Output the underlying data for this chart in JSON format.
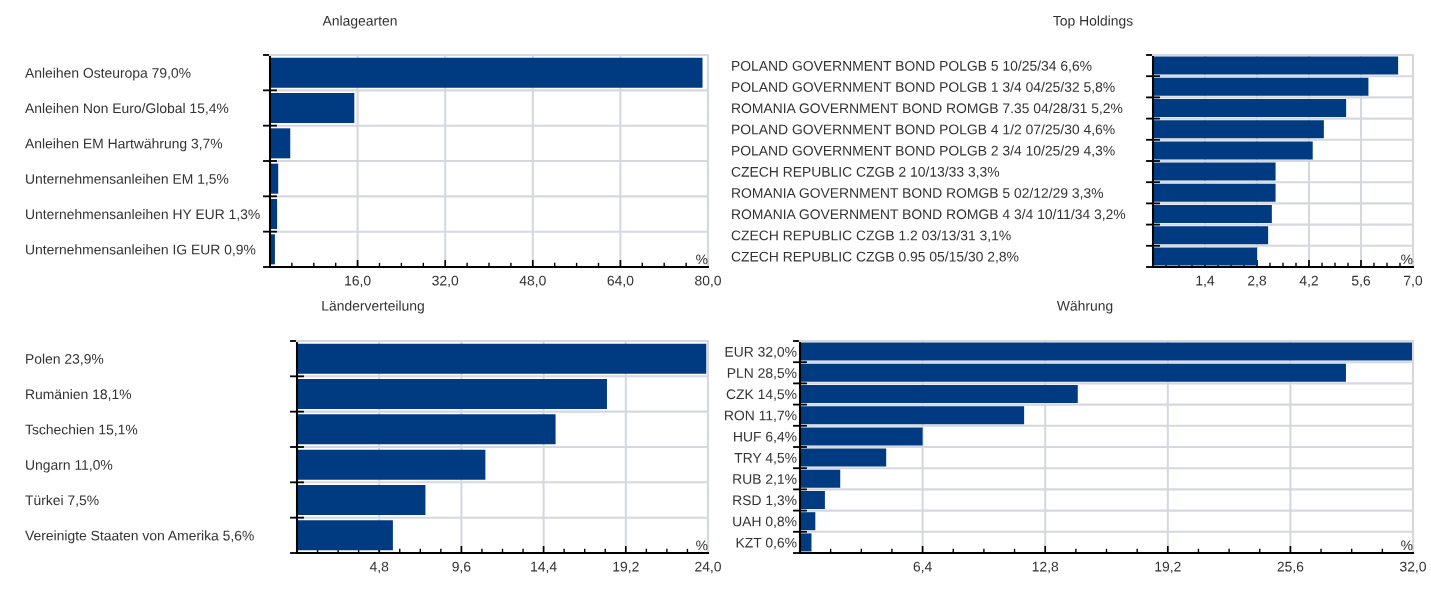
{
  "chart_data": [
    {
      "type": "bar",
      "orientation": "horizontal",
      "title": "Anlagearten",
      "categories": [
        "Anleihen Osteuropa 79,0%",
        "Anleihen Non Euro/Global 15,4%",
        "Anleihen EM Hartwährung 3,7%",
        "Unternehmensanleihen EM 1,5%",
        "Unternehmensanleihen HY EUR 1,3%",
        "Unternehmensanleihen IG EUR 0,9%"
      ],
      "values": [
        79.0,
        15.4,
        3.7,
        1.5,
        1.3,
        0.9
      ],
      "color": "#003a80",
      "xlim": [
        0,
        80
      ],
      "xticks": [
        {
          "value": 16,
          "label": "16,0"
        },
        {
          "value": 32,
          "label": "32,0"
        },
        {
          "value": 48,
          "label": "48,0"
        },
        {
          "value": 64,
          "label": "64,0"
        },
        {
          "value": 80,
          "label": "80,0"
        }
      ],
      "grid": true,
      "annotations": [
        "%"
      ]
    },
    {
      "type": "bar",
      "orientation": "horizontal",
      "title": "Top Holdings",
      "categories": [
        "POLAND GOVERNMENT BOND POLGB 5 10/25/34 6,6%",
        "POLAND GOVERNMENT BOND POLGB 1 3/4 04/25/32 5,8%",
        "ROMANIA GOVERNMENT BOND ROMGB 7.35 04/28/31 5,2%",
        "POLAND GOVERNMENT BOND POLGB 4 1/2 07/25/30 4,6%",
        "POLAND GOVERNMENT BOND POLGB 2 3/4 10/25/29 4,3%",
        "CZECH REPUBLIC CZGB 2 10/13/33 3,3%",
        "ROMANIA GOVERNMENT BOND ROMGB 5 02/12/29 3,3%",
        "ROMANIA GOVERNMENT BOND ROMGB 4 3/4 10/11/34 3,2%",
        "CZECH REPUBLIC CZGB 1.2 03/13/31 3,1%",
        "CZECH REPUBLIC CZGB 0.95 05/15/30 2,8%"
      ],
      "values": [
        6.6,
        5.8,
        5.2,
        4.6,
        4.3,
        3.3,
        3.3,
        3.2,
        3.1,
        2.8
      ],
      "color": "#003a80",
      "xlim": [
        0,
        7
      ],
      "xticks": [
        {
          "value": 1.4,
          "label": "1,4"
        },
        {
          "value": 2.8,
          "label": "2,8"
        },
        {
          "value": 4.2,
          "label": "4,2"
        },
        {
          "value": 5.6,
          "label": "5,6"
        },
        {
          "value": 7,
          "label": "7,0"
        }
      ],
      "grid": true,
      "annotations": [
        "%"
      ]
    },
    {
      "type": "bar",
      "orientation": "horizontal",
      "title": "Länderverteilung",
      "categories": [
        "Polen 23,9%",
        "Rumänien 18,1%",
        "Tschechien 15,1%",
        "Ungarn 11,0%",
        "Türkei 7,5%",
        "Vereinigte Staaten von Amerika 5,6%"
      ],
      "values": [
        23.9,
        18.1,
        15.1,
        11.0,
        7.5,
        5.6
      ],
      "color": "#003a80",
      "xlim": [
        0,
        24
      ],
      "xticks": [
        {
          "value": 4.8,
          "label": "4,8"
        },
        {
          "value": 9.6,
          "label": "9,6"
        },
        {
          "value": 14.4,
          "label": "14,4"
        },
        {
          "value": 19.2,
          "label": "19,2"
        },
        {
          "value": 24,
          "label": "24,0"
        }
      ],
      "grid": true,
      "annotations": [
        "%"
      ]
    },
    {
      "type": "bar",
      "orientation": "horizontal",
      "title": "Währung",
      "categories": [
        "EUR 32,0%",
        "PLN 28,5%",
        "CZK 14,5%",
        "RON 11,7%",
        "HUF 6,4%",
        "TRY 4,5%",
        "RUB 2,1%",
        "RSD 1,3%",
        "UAH 0,8%",
        "KZT 0,6%"
      ],
      "values": [
        32.0,
        28.5,
        14.5,
        11.7,
        6.4,
        4.5,
        2.1,
        1.3,
        0.8,
        0.6
      ],
      "color": "#003a80",
      "xlim": [
        0,
        32
      ],
      "xticks": [
        {
          "value": 6.4,
          "label": "6,4"
        },
        {
          "value": 12.8,
          "label": "12,8"
        },
        {
          "value": 19.2,
          "label": "19,2"
        },
        {
          "value": 25.6,
          "label": "25,6"
        },
        {
          "value": 32,
          "label": "32,0"
        }
      ],
      "grid": true,
      "annotations": [
        "%"
      ]
    }
  ]
}
